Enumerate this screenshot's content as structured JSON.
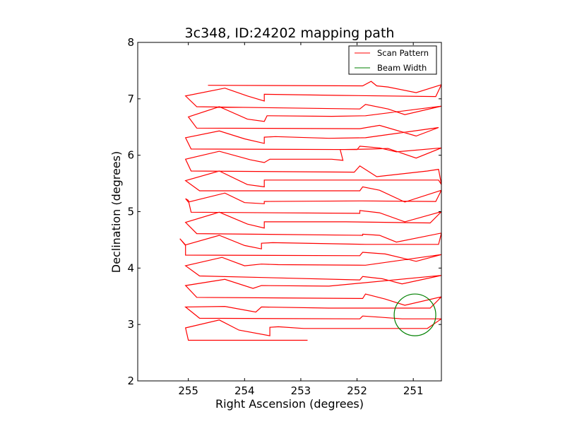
{
  "chart_data": {
    "type": "line",
    "title": "3c348, ID:24202 mapping path",
    "xlabel": "Right Ascension (degrees)",
    "ylabel": "Declination (degrees)",
    "xlim": [
      255.9,
      250.5
    ],
    "ylim": [
      2,
      8
    ],
    "x_reversed": true,
    "xticks": [
      255,
      254,
      253,
      252,
      251
    ],
    "yticks": [
      2,
      3,
      4,
      5,
      6,
      7,
      8
    ],
    "grid": false,
    "legend_position": "top-right",
    "legend": [
      {
        "label": "Scan Pattern",
        "color": "#ff0000",
        "kind": "line"
      },
      {
        "label": "Beam Width",
        "color": "#008000",
        "kind": "line"
      }
    ],
    "series": [
      {
        "name": "Scan Pattern",
        "color": "#ff0000",
        "points": [
          [
            252.88,
            2.72
          ],
          [
            255.0,
            2.72
          ],
          [
            255.05,
            2.94
          ],
          [
            254.45,
            3.08
          ],
          [
            254.1,
            2.9
          ],
          [
            253.55,
            2.8
          ],
          [
            253.55,
            2.95
          ],
          [
            253.4,
            2.96
          ],
          [
            252.95,
            2.93
          ],
          [
            252.2,
            2.93
          ],
          [
            251.45,
            2.93
          ],
          [
            250.75,
            2.93
          ],
          [
            250.5,
            3.1
          ],
          [
            250.6,
            3.1
          ],
          [
            251.2,
            3.1
          ],
          [
            251.6,
            3.13
          ],
          [
            251.9,
            3.15
          ],
          [
            251.95,
            3.1
          ],
          [
            254.8,
            3.11
          ],
          [
            255.05,
            3.31
          ],
          [
            254.35,
            3.32
          ],
          [
            253.8,
            3.22
          ],
          [
            253.7,
            3.31
          ],
          [
            252.5,
            3.29
          ],
          [
            250.7,
            3.29
          ],
          [
            250.5,
            3.49
          ],
          [
            251.15,
            3.34
          ],
          [
            251.5,
            3.45
          ],
          [
            251.85,
            3.54
          ],
          [
            251.9,
            3.46
          ],
          [
            254.85,
            3.48
          ],
          [
            255.05,
            3.69
          ],
          [
            254.35,
            3.8
          ],
          [
            253.85,
            3.64
          ],
          [
            253.7,
            3.69
          ],
          [
            252.5,
            3.68
          ],
          [
            250.5,
            3.87
          ],
          [
            251.2,
            3.72
          ],
          [
            251.55,
            3.81
          ],
          [
            251.9,
            3.85
          ],
          [
            251.95,
            3.79
          ],
          [
            254.8,
            3.86
          ],
          [
            255.05,
            4.04
          ],
          [
            254.4,
            4.19
          ],
          [
            254.0,
            4.04
          ],
          [
            253.7,
            4.07
          ],
          [
            253.4,
            4.06
          ],
          [
            251.85,
            4.05
          ],
          [
            250.5,
            4.24
          ],
          [
            250.95,
            4.12
          ],
          [
            251.5,
            4.25
          ],
          [
            251.9,
            4.28
          ],
          [
            251.95,
            4.22
          ],
          [
            255.05,
            4.23
          ],
          [
            255.05,
            4.4
          ],
          [
            255.15,
            4.52
          ],
          [
            255.05,
            4.41
          ],
          [
            254.45,
            4.58
          ],
          [
            254.0,
            4.4
          ],
          [
            253.7,
            4.34
          ],
          [
            253.7,
            4.44
          ],
          [
            253.5,
            4.45
          ],
          [
            251.85,
            4.42
          ],
          [
            250.55,
            4.42
          ],
          [
            250.5,
            4.62
          ],
          [
            251.3,
            4.46
          ],
          [
            251.6,
            4.58
          ],
          [
            251.9,
            4.6
          ],
          [
            251.9,
            4.58
          ],
          [
            254.85,
            4.61
          ],
          [
            255.05,
            4.81
          ],
          [
            254.45,
            4.99
          ],
          [
            253.95,
            4.78
          ],
          [
            253.65,
            4.71
          ],
          [
            253.65,
            4.82
          ],
          [
            252.2,
            4.82
          ],
          [
            250.7,
            4.8
          ],
          [
            250.5,
            5.0
          ],
          [
            251.15,
            4.82
          ],
          [
            251.6,
            4.98
          ],
          [
            251.95,
            5.02
          ],
          [
            251.95,
            4.97
          ],
          [
            254.95,
            4.99
          ],
          [
            255.0,
            5.2
          ],
          [
            255.05,
            5.23
          ],
          [
            255.0,
            5.17
          ],
          [
            254.35,
            5.33
          ],
          [
            254.0,
            5.16
          ],
          [
            253.65,
            5.14
          ],
          [
            253.65,
            5.18
          ],
          [
            251.9,
            5.19
          ],
          [
            250.6,
            5.18
          ],
          [
            250.5,
            5.38
          ],
          [
            251.15,
            5.17
          ],
          [
            251.6,
            5.38
          ],
          [
            251.9,
            5.44
          ],
          [
            251.95,
            5.37
          ],
          [
            254.8,
            5.37
          ],
          [
            255.05,
            5.55
          ],
          [
            254.45,
            5.72
          ],
          [
            253.95,
            5.48
          ],
          [
            253.65,
            5.44
          ],
          [
            253.65,
            5.56
          ],
          [
            252.3,
            5.56
          ],
          [
            250.55,
            5.56
          ],
          [
            250.5,
            5.48
          ],
          [
            250.55,
            5.75
          ],
          [
            250.75,
            5.72
          ],
          [
            251.65,
            5.62
          ],
          [
            251.95,
            5.81
          ],
          [
            252.05,
            5.7
          ],
          [
            254.95,
            5.72
          ],
          [
            255.05,
            5.93
          ],
          [
            254.45,
            6.07
          ],
          [
            253.9,
            5.92
          ],
          [
            253.65,
            5.87
          ],
          [
            253.55,
            5.93
          ],
          [
            252.45,
            5.93
          ],
          [
            252.25,
            5.91
          ],
          [
            252.3,
            6.1
          ],
          [
            251.75,
            6.11
          ],
          [
            251.45,
            6.12
          ],
          [
            250.95,
            5.95
          ],
          [
            250.5,
            6.13
          ],
          [
            251.3,
            6.06
          ],
          [
            251.6,
            6.13
          ],
          [
            251.95,
            6.16
          ],
          [
            252.0,
            6.1
          ],
          [
            254.95,
            6.11
          ],
          [
            255.05,
            6.31
          ],
          [
            254.45,
            6.43
          ],
          [
            254.0,
            6.29
          ],
          [
            253.65,
            6.21
          ],
          [
            253.65,
            6.32
          ],
          [
            253.45,
            6.33
          ],
          [
            252.5,
            6.3
          ],
          [
            251.85,
            6.31
          ],
          [
            250.55,
            6.49
          ],
          [
            250.95,
            6.34
          ],
          [
            251.6,
            6.53
          ],
          [
            251.95,
            6.47
          ],
          [
            254.85,
            6.48
          ],
          [
            255.0,
            6.68
          ],
          [
            254.45,
            6.86
          ],
          [
            253.95,
            6.64
          ],
          [
            253.65,
            6.6
          ],
          [
            253.6,
            6.7
          ],
          [
            252.45,
            6.69
          ],
          [
            251.85,
            6.7
          ],
          [
            250.5,
            6.87
          ],
          [
            251.15,
            6.72
          ],
          [
            251.45,
            6.82
          ],
          [
            251.85,
            6.9
          ],
          [
            251.95,
            6.82
          ],
          [
            254.85,
            6.86
          ],
          [
            255.05,
            7.05
          ],
          [
            254.35,
            7.19
          ],
          [
            253.95,
            7.05
          ],
          [
            253.65,
            6.96
          ],
          [
            253.65,
            7.08
          ],
          [
            252.3,
            7.06
          ],
          [
            250.6,
            7.04
          ],
          [
            250.5,
            7.25
          ],
          [
            250.95,
            7.11
          ],
          [
            251.45,
            7.21
          ],
          [
            251.65,
            7.23
          ],
          [
            251.75,
            7.31
          ],
          [
            251.9,
            7.23
          ],
          [
            254.65,
            7.24
          ]
        ]
      },
      {
        "name": "Beam Width",
        "color": "#008000",
        "shape": "circle",
        "center": [
          250.97,
          3.17
        ],
        "radius_deg": 0.37
      }
    ]
  }
}
